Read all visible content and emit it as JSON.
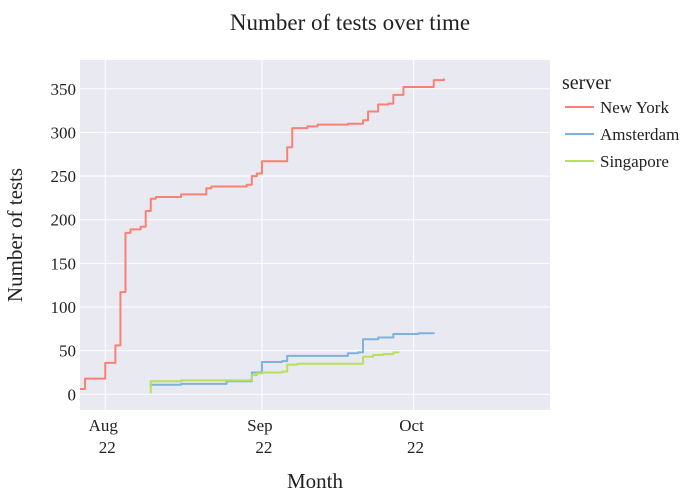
{
  "chart_data": {
    "type": "line",
    "title": "Number of tests over time",
    "xlabel": "Month",
    "ylabel": "Number of tests",
    "x_range": [
      "2022-07-27",
      "2022-10-28"
    ],
    "ylim": [
      -18,
      383
    ],
    "y_ticks": [
      0,
      50,
      100,
      150,
      200,
      250,
      300,
      350
    ],
    "x_ticks": [
      {
        "date": "2022-08-01",
        "month": "Aug",
        "year": "22"
      },
      {
        "date": "2022-09-01",
        "month": "Sep",
        "year": "22"
      },
      {
        "date": "2022-10-01",
        "month": "Oct",
        "year": "22"
      }
    ],
    "grid": true,
    "legend": {
      "title": "server",
      "position": "right"
    },
    "plot_background": "#e9e9f2",
    "series": [
      {
        "name": "New York",
        "color": "#f98173",
        "points": [
          [
            "2022-07-27",
            6
          ],
          [
            "2022-07-28",
            8
          ],
          [
            "2022-07-28",
            10
          ],
          [
            "2022-07-28",
            18
          ],
          [
            "2022-08-01",
            22
          ],
          [
            "2022-08-01",
            25
          ],
          [
            "2022-08-01",
            36
          ],
          [
            "2022-08-03",
            38
          ],
          [
            "2022-08-03",
            56
          ],
          [
            "2022-08-04",
            57
          ],
          [
            "2022-08-04",
            117
          ],
          [
            "2022-08-05",
            119
          ],
          [
            "2022-08-05",
            185
          ],
          [
            "2022-08-06",
            186
          ],
          [
            "2022-08-06",
            189
          ],
          [
            "2022-08-08",
            191
          ],
          [
            "2022-08-08",
            192
          ],
          [
            "2022-08-09",
            193
          ],
          [
            "2022-08-09",
            210
          ],
          [
            "2022-08-10",
            215
          ],
          [
            "2022-08-10",
            224
          ],
          [
            "2022-08-11",
            226
          ],
          [
            "2022-08-16",
            229
          ],
          [
            "2022-08-21",
            231
          ],
          [
            "2022-08-21",
            236
          ],
          [
            "2022-08-22",
            238
          ],
          [
            "2022-08-29",
            240
          ],
          [
            "2022-08-30",
            240
          ],
          [
            "2022-08-30",
            250
          ],
          [
            "2022-08-31",
            253
          ],
          [
            "2022-09-01",
            254
          ],
          [
            "2022-09-01",
            267
          ],
          [
            "2022-09-06",
            268
          ],
          [
            "2022-09-06",
            283
          ],
          [
            "2022-09-07",
            285
          ],
          [
            "2022-09-07",
            305
          ],
          [
            "2022-09-10",
            307
          ],
          [
            "2022-09-12",
            309
          ],
          [
            "2022-09-18",
            310
          ],
          [
            "2022-09-21",
            310
          ],
          [
            "2022-09-21",
            314
          ],
          [
            "2022-09-22",
            314
          ],
          [
            "2022-09-22",
            324
          ],
          [
            "2022-09-24",
            326
          ],
          [
            "2022-09-24",
            332
          ],
          [
            "2022-09-26",
            333
          ],
          [
            "2022-09-27",
            336
          ],
          [
            "2022-09-27",
            343
          ],
          [
            "2022-09-29",
            344
          ],
          [
            "2022-09-29",
            352
          ],
          [
            "2022-10-05",
            353
          ],
          [
            "2022-10-05",
            360
          ],
          [
            "2022-10-07",
            362
          ]
        ]
      },
      {
        "name": "Amsterdam",
        "color": "#7fb2da",
        "points": [
          [
            "2022-08-10",
            9
          ],
          [
            "2022-08-10",
            11
          ],
          [
            "2022-08-16",
            12
          ],
          [
            "2022-08-25",
            15
          ],
          [
            "2022-08-30",
            16
          ],
          [
            "2022-08-30",
            25
          ],
          [
            "2022-09-01",
            28
          ],
          [
            "2022-09-01",
            37
          ],
          [
            "2022-09-05",
            38
          ],
          [
            "2022-09-06",
            40
          ],
          [
            "2022-09-06",
            44
          ],
          [
            "2022-09-18",
            45
          ],
          [
            "2022-09-18",
            47
          ],
          [
            "2022-09-20",
            48
          ],
          [
            "2022-09-21",
            52
          ],
          [
            "2022-09-21",
            63
          ],
          [
            "2022-09-24",
            65
          ],
          [
            "2022-09-27",
            67
          ],
          [
            "2022-09-27",
            69
          ],
          [
            "2022-10-02",
            70
          ],
          [
            "2022-10-05",
            71
          ]
        ]
      },
      {
        "name": "Singapore",
        "color": "#b8e05a",
        "points": [
          [
            "2022-08-10",
            1
          ],
          [
            "2022-08-10",
            13
          ],
          [
            "2022-08-10",
            15
          ],
          [
            "2022-08-16",
            16
          ],
          [
            "2022-08-30",
            17
          ],
          [
            "2022-08-30",
            22
          ],
          [
            "2022-08-31",
            24
          ],
          [
            "2022-09-01",
            25
          ],
          [
            "2022-09-05",
            26
          ],
          [
            "2022-09-06",
            30
          ],
          [
            "2022-09-06",
            34
          ],
          [
            "2022-09-08",
            35
          ],
          [
            "2022-09-21",
            36
          ],
          [
            "2022-09-21",
            43
          ],
          [
            "2022-09-23",
            45
          ],
          [
            "2022-09-25",
            46
          ],
          [
            "2022-09-27",
            48
          ],
          [
            "2022-09-28",
            49
          ]
        ]
      }
    ]
  }
}
